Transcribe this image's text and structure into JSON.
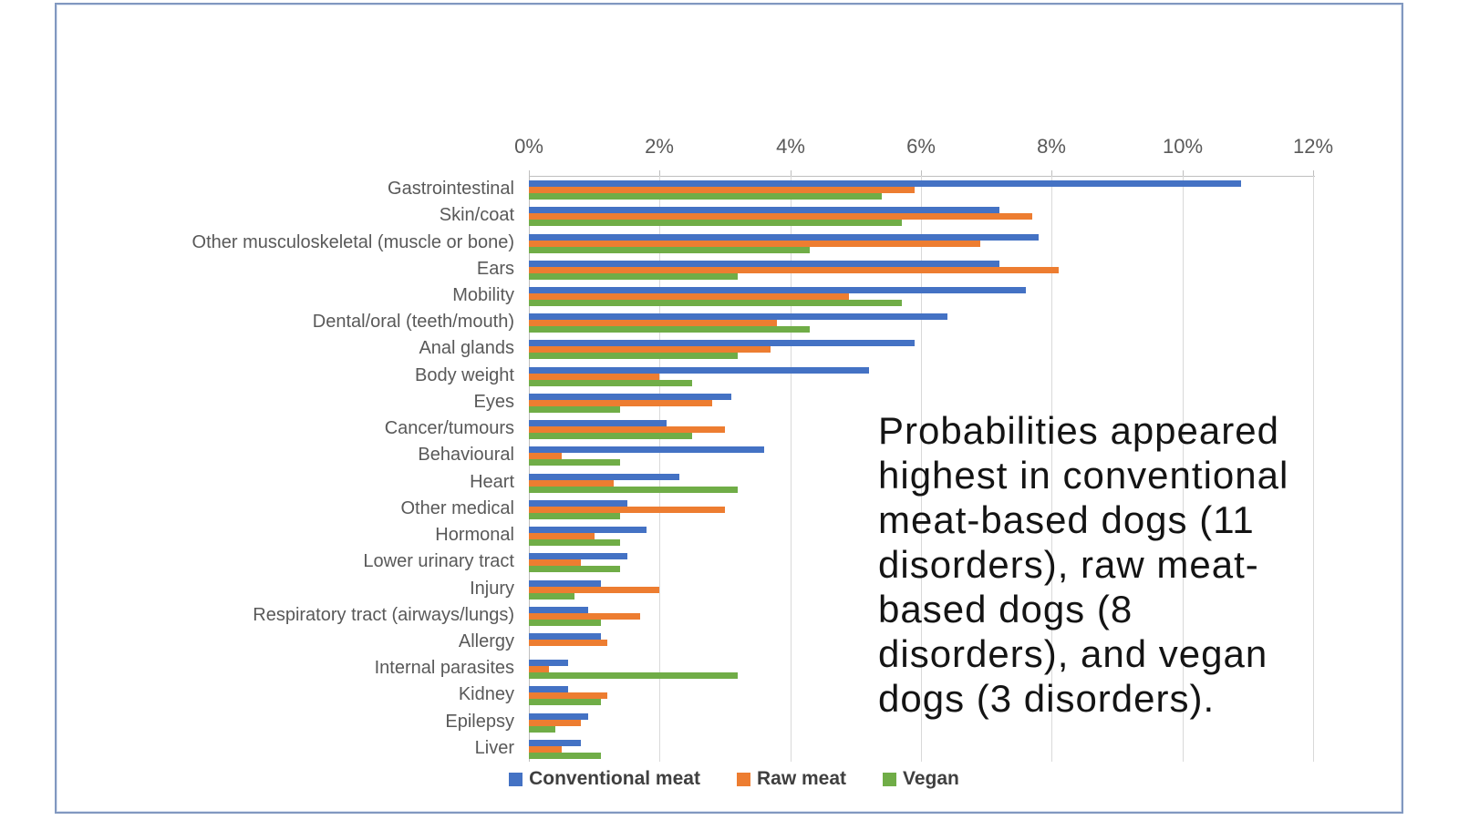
{
  "frame": {
    "border_color": "#8198c0",
    "background": "#ffffff"
  },
  "annotation": {
    "full_text": "Probabilities appeared highest in conventional meat-based dogs (11 disorders), raw meat-based dogs (8 disorders), and vegan dogs (3 disorders).",
    "lines": [
      "Probabilities appeared",
      "highest in conventional",
      "meat-based dogs (11",
      "disorders), raw meat-",
      "based dogs (8",
      "disorders), and vegan",
      "dogs (3 disorders)."
    ],
    "text_color": "#141414"
  },
  "chart_data": {
    "type": "bar",
    "orientation": "horizontal",
    "title": "",
    "value_axis": {
      "position": "top",
      "min": 0,
      "max": 12,
      "tick_step": 2,
      "ticks": [
        "0%",
        "2%",
        "4%",
        "6%",
        "8%",
        "10%",
        "12%"
      ],
      "unit": "%"
    },
    "grid": true,
    "grid_color": "#d9d9d9",
    "axis_color": "#bfbfbf",
    "tick_label_color": "#595959",
    "category_label_color": "#595959",
    "legend": {
      "position": "bottom",
      "text_color": "#3f3f3f"
    },
    "categories": [
      "Gastrointestinal",
      "Skin/coat",
      "Other musculoskeletal (muscle or bone)",
      "Ears",
      "Mobility",
      "Dental/oral (teeth/mouth)",
      "Anal glands",
      "Body weight",
      "Eyes",
      "Cancer/tumours",
      "Behavioural",
      "Heart",
      "Other medical",
      "Hormonal",
      "Lower urinary tract",
      "Injury",
      "Respiratory tract (airways/lungs)",
      "Allergy",
      "Internal parasites",
      "Kidney",
      "Epilepsy",
      "Liver"
    ],
    "series": [
      {
        "name": "Conventional meat",
        "color": "#4472C4",
        "values": [
          10.9,
          7.2,
          7.8,
          7.2,
          7.6,
          6.4,
          5.9,
          5.2,
          3.1,
          2.1,
          3.6,
          2.3,
          1.5,
          1.8,
          1.5,
          1.1,
          0.9,
          1.1,
          0.6,
          0.6,
          0.9,
          0.8
        ]
      },
      {
        "name": "Raw meat",
        "color": "#ED7D31",
        "values": [
          5.9,
          7.7,
          6.9,
          8.1,
          4.9,
          3.8,
          3.7,
          2.0,
          2.8,
          3.0,
          0.5,
          1.3,
          3.0,
          1.0,
          0.8,
          2.0,
          1.7,
          1.2,
          0.3,
          1.2,
          0.8,
          0.5
        ]
      },
      {
        "name": "Vegan",
        "color": "#70AD47",
        "values": [
          5.4,
          5.7,
          4.3,
          3.2,
          5.7,
          4.3,
          3.2,
          2.5,
          1.4,
          2.5,
          1.4,
          3.2,
          1.4,
          1.4,
          1.4,
          0.7,
          1.1,
          0.0,
          3.2,
          1.1,
          0.4,
          1.1
        ]
      }
    ]
  }
}
